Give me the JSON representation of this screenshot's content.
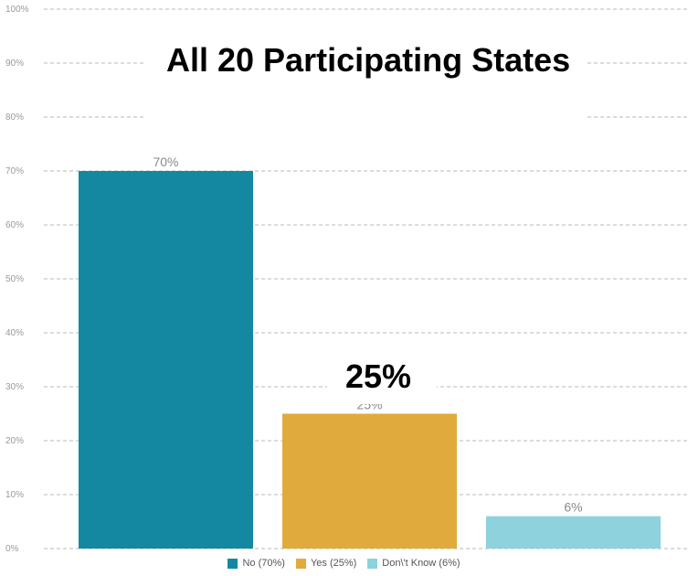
{
  "chart_data": {
    "type": "bar",
    "title": "All 20 Participating States",
    "categories": [
      "No",
      "Yes",
      "Don\\'t Know"
    ],
    "values": [
      70,
      25,
      6
    ],
    "value_labels": [
      "70%",
      "25%",
      "6%"
    ],
    "legend": [
      "No (70%)",
      "Yes (25%)",
      "Don\\'t Know (6%)"
    ],
    "colors": [
      "#1588a1",
      "#e0ab3c",
      "#8dd2dc"
    ],
    "yticks": [
      "0%",
      "10%",
      "20%",
      "30%",
      "40%",
      "50%",
      "60%",
      "70%",
      "80%",
      "90%",
      "100%"
    ],
    "ylim": [
      0,
      100
    ],
    "grid": true,
    "legend_position": "bottom",
    "callout": "25%"
  }
}
